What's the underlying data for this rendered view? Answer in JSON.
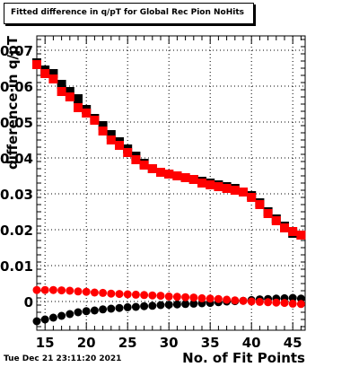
{
  "header": {
    "title": "Fitted difference in q/pT for Global Rec Pion NoHits"
  },
  "footer": {
    "timestamp": "Tue Dec 21 23:11:20 2021"
  },
  "colors": {
    "series_black": "#000000",
    "series_red": "#ff0000",
    "grid": "#000000"
  },
  "chart_data": {
    "type": "scatter",
    "title": "Fitted difference in q/pT for Global Rec Pion NoHits",
    "xlabel": "No. of Fit Points",
    "ylabel": "difference in q/pT",
    "xlim": [
      14,
      46.5
    ],
    "ylim": [
      -0.008,
      0.074
    ],
    "x_ticks": [
      15,
      20,
      25,
      30,
      35,
      40,
      45
    ],
    "x_tick_labels": [
      "15",
      "20",
      "25",
      "30",
      "35",
      "40",
      "45"
    ],
    "y_ticks": [
      0,
      0.01,
      0.02,
      0.03,
      0.04,
      0.05,
      0.06,
      0.07
    ],
    "y_tick_labels": [
      "0",
      "0.01",
      "0.02",
      "0.03",
      "0.04",
      "0.05",
      "0.06",
      "0.07"
    ],
    "grid": true,
    "x": [
      14,
      15,
      16,
      17,
      18,
      19,
      20,
      21,
      22,
      23,
      24,
      25,
      26,
      27,
      28,
      29,
      30,
      31,
      32,
      33,
      34,
      35,
      36,
      37,
      38,
      39,
      40,
      41,
      42,
      43,
      44,
      45,
      46
    ],
    "series": [
      {
        "marker": "square",
        "color": "#000000",
        "values": [
          0.0665,
          0.0645,
          0.0635,
          0.0605,
          0.0585,
          0.0565,
          0.0535,
          0.051,
          0.049,
          0.0465,
          0.0445,
          0.0425,
          0.0405,
          0.0385,
          0.037,
          0.036,
          0.0355,
          0.035,
          0.0345,
          0.034,
          0.0335,
          0.033,
          0.0325,
          0.032,
          0.0315,
          0.0305,
          0.0295,
          0.0275,
          0.025,
          0.023,
          0.021,
          0.019,
          0.0185
        ]
      },
      {
        "marker": "square",
        "color": "#ff0000",
        "values": [
          0.066,
          0.0635,
          0.062,
          0.0585,
          0.057,
          0.054,
          0.0525,
          0.0505,
          0.0475,
          0.045,
          0.0435,
          0.0415,
          0.0395,
          0.038,
          0.037,
          0.036,
          0.0355,
          0.035,
          0.0345,
          0.034,
          0.033,
          0.0325,
          0.032,
          0.0315,
          0.031,
          0.0305,
          0.029,
          0.027,
          0.0245,
          0.0225,
          0.0205,
          0.0195,
          0.0185
        ]
      },
      {
        "marker": "circle",
        "color": "#000000",
        "values": [
          -0.0055,
          -0.005,
          -0.0045,
          -0.004,
          -0.0035,
          -0.003,
          -0.0027,
          -0.0025,
          -0.0022,
          -0.002,
          -0.0018,
          -0.0016,
          -0.0015,
          -0.0013,
          -0.0012,
          -0.001,
          -0.0009,
          -0.0008,
          -0.0007,
          -0.0006,
          -0.0005,
          -0.0004,
          -0.0002,
          0.0,
          0.0001,
          0.0002,
          0.0004,
          0.0006,
          0.0007,
          0.0008,
          0.0009,
          0.001,
          0.0008
        ]
      },
      {
        "marker": "circle",
        "color": "#ff0000",
        "values": [
          0.0032,
          0.0032,
          0.0032,
          0.0031,
          0.003,
          0.0028,
          0.0027,
          0.0025,
          0.0024,
          0.0022,
          0.0021,
          0.002,
          0.0019,
          0.0018,
          0.0017,
          0.0016,
          0.0014,
          0.0013,
          0.0012,
          0.0011,
          0.0009,
          0.0008,
          0.0007,
          0.0005,
          0.0003,
          0.0002,
          0.0,
          -0.0001,
          -0.0002,
          -0.0003,
          -0.0004,
          -0.0006,
          -0.0007
        ]
      }
    ]
  }
}
